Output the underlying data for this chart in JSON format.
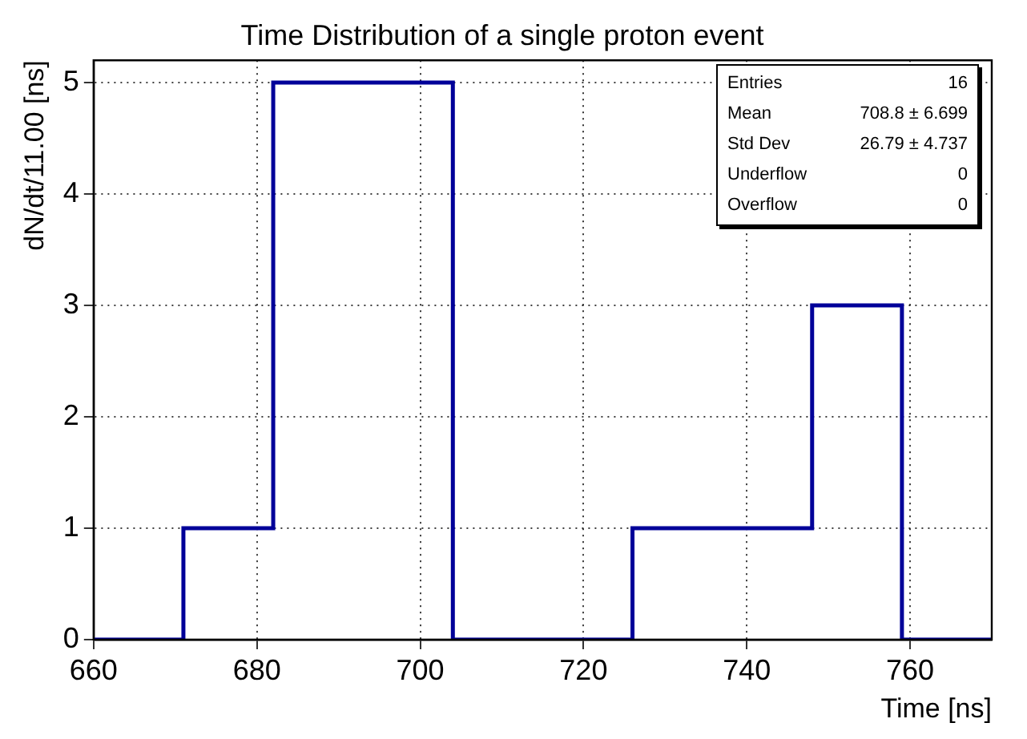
{
  "chart_data": {
    "type": "histogram",
    "title": "Time Distribution of a single proton event",
    "xlabel": "Time [ns]",
    "ylabel": "dN/dt/11.00 [ns]",
    "bins": [
      660,
      671,
      682,
      693,
      704,
      715,
      726,
      737,
      748,
      759,
      770
    ],
    "values": [
      0,
      1,
      5,
      5,
      0,
      0,
      1,
      1,
      3,
      0
    ],
    "color": "#000099",
    "xlim": [
      660,
      770
    ],
    "xticks": [
      660,
      680,
      700,
      720,
      740,
      760
    ],
    "ylim": [
      0,
      5.2
    ],
    "yticks": [
      0,
      1,
      2,
      3,
      4,
      5
    ],
    "grid": true,
    "line_style": "solid",
    "marker": "none",
    "annotations": [
      "Entries",
      "16",
      "Mean",
      "708.8 ± 6.699",
      "Std Dev",
      "26.79 ± 4.737",
      "Underflow",
      "0",
      "Overflow",
      "0"
    ]
  }
}
